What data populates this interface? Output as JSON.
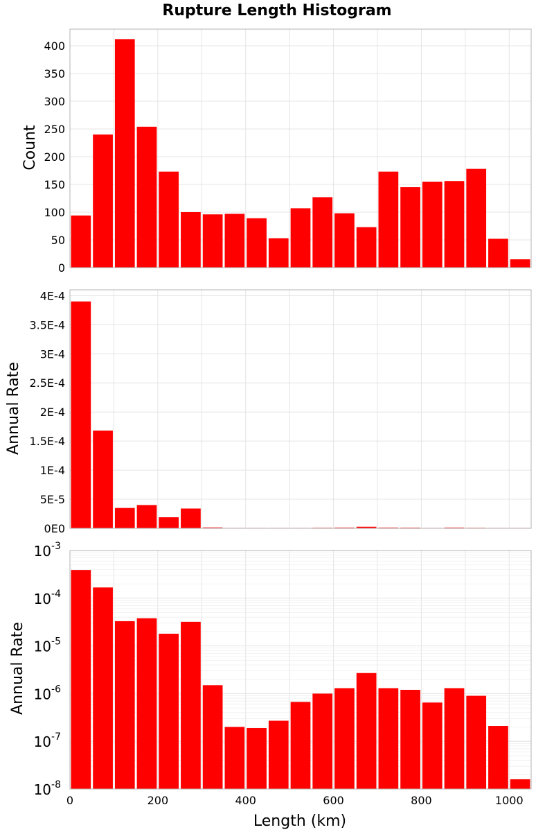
{
  "chart_data": [
    {
      "type": "bar",
      "title": "Rupture Length Histogram",
      "xlabel": "",
      "ylabel": "Count",
      "scale": "linear",
      "xlim": [
        0,
        1050
      ],
      "ylim": [
        0,
        430
      ],
      "bin_width": 50,
      "x": [
        25,
        75,
        125,
        175,
        225,
        275,
        325,
        375,
        425,
        475,
        525,
        575,
        625,
        675,
        725,
        775,
        825,
        875,
        925,
        975,
        1025
      ],
      "values": [
        94,
        240,
        412,
        254,
        173,
        100,
        96,
        97,
        89,
        53,
        107,
        127,
        98,
        73,
        173,
        145,
        155,
        156,
        178,
        52,
        15
      ],
      "yticks": [
        "0",
        "50",
        "100",
        "150",
        "200",
        "250",
        "300",
        "350",
        "400"
      ],
      "bar_color": "#ff0000",
      "grid": true
    },
    {
      "type": "bar",
      "xlabel": "",
      "ylabel": "Annual Rate",
      "scale": "linear",
      "xlim": [
        0,
        1050
      ],
      "ylim": [
        0,
        0.00041
      ],
      "bin_width": 50,
      "x": [
        25,
        75,
        125,
        175,
        225,
        275,
        325,
        375,
        425,
        475,
        525,
        575,
        625,
        675,
        725,
        775,
        825,
        875,
        925,
        975,
        1025
      ],
      "values": [
        0.00039,
        0.000168,
        3.5e-05,
        4e-05,
        1.9e-05,
        3.4e-05,
        1.5e-06,
        2e-07,
        1.9e-07,
        2.7e-07,
        6.7e-07,
        1e-06,
        1.3e-06,
        2.7e-06,
        1.3e-06,
        1.2e-06,
        6.5e-07,
        1.3e-06,
        9e-07,
        2e-07,
        1.6e-08
      ],
      "yticks": [
        "0E0",
        "5E-5",
        "1E-4",
        "1.5E-4",
        "2E-4",
        "2.5E-4",
        "3E-4",
        "3.5E-4",
        "4E-4"
      ],
      "bar_color": "#ff0000",
      "grid": true
    },
    {
      "type": "bar",
      "xlabel": "Length (km)",
      "ylabel": "Annual Rate",
      "scale": "log",
      "xlim": [
        0,
        1050
      ],
      "ylim": [
        1e-08,
        0.001
      ],
      "bin_width": 50,
      "x": [
        25,
        75,
        125,
        175,
        225,
        275,
        325,
        375,
        425,
        475,
        525,
        575,
        625,
        675,
        725,
        775,
        825,
        875,
        925,
        975,
        1025
      ],
      "values": [
        0.00039,
        0.000168,
        3.3e-05,
        3.8e-05,
        1.8e-05,
        3.2e-05,
        1.5e-06,
        2e-07,
        1.9e-07,
        2.7e-07,
        6.7e-07,
        1e-06,
        1.3e-06,
        2.7e-06,
        1.3e-06,
        1.2e-06,
        6.5e-07,
        1.3e-06,
        9e-07,
        2.1e-07,
        1.6e-08
      ],
      "xticks": [
        "0",
        "200",
        "400",
        "600",
        "800",
        "1000"
      ],
      "yticks_base": [
        "10",
        "10",
        "10",
        "10",
        "10",
        "10"
      ],
      "yticks_exp": [
        "-8",
        "-7",
        "-6",
        "-5",
        "-4",
        "-3"
      ],
      "bar_color": "#ff0000",
      "grid": true
    }
  ]
}
